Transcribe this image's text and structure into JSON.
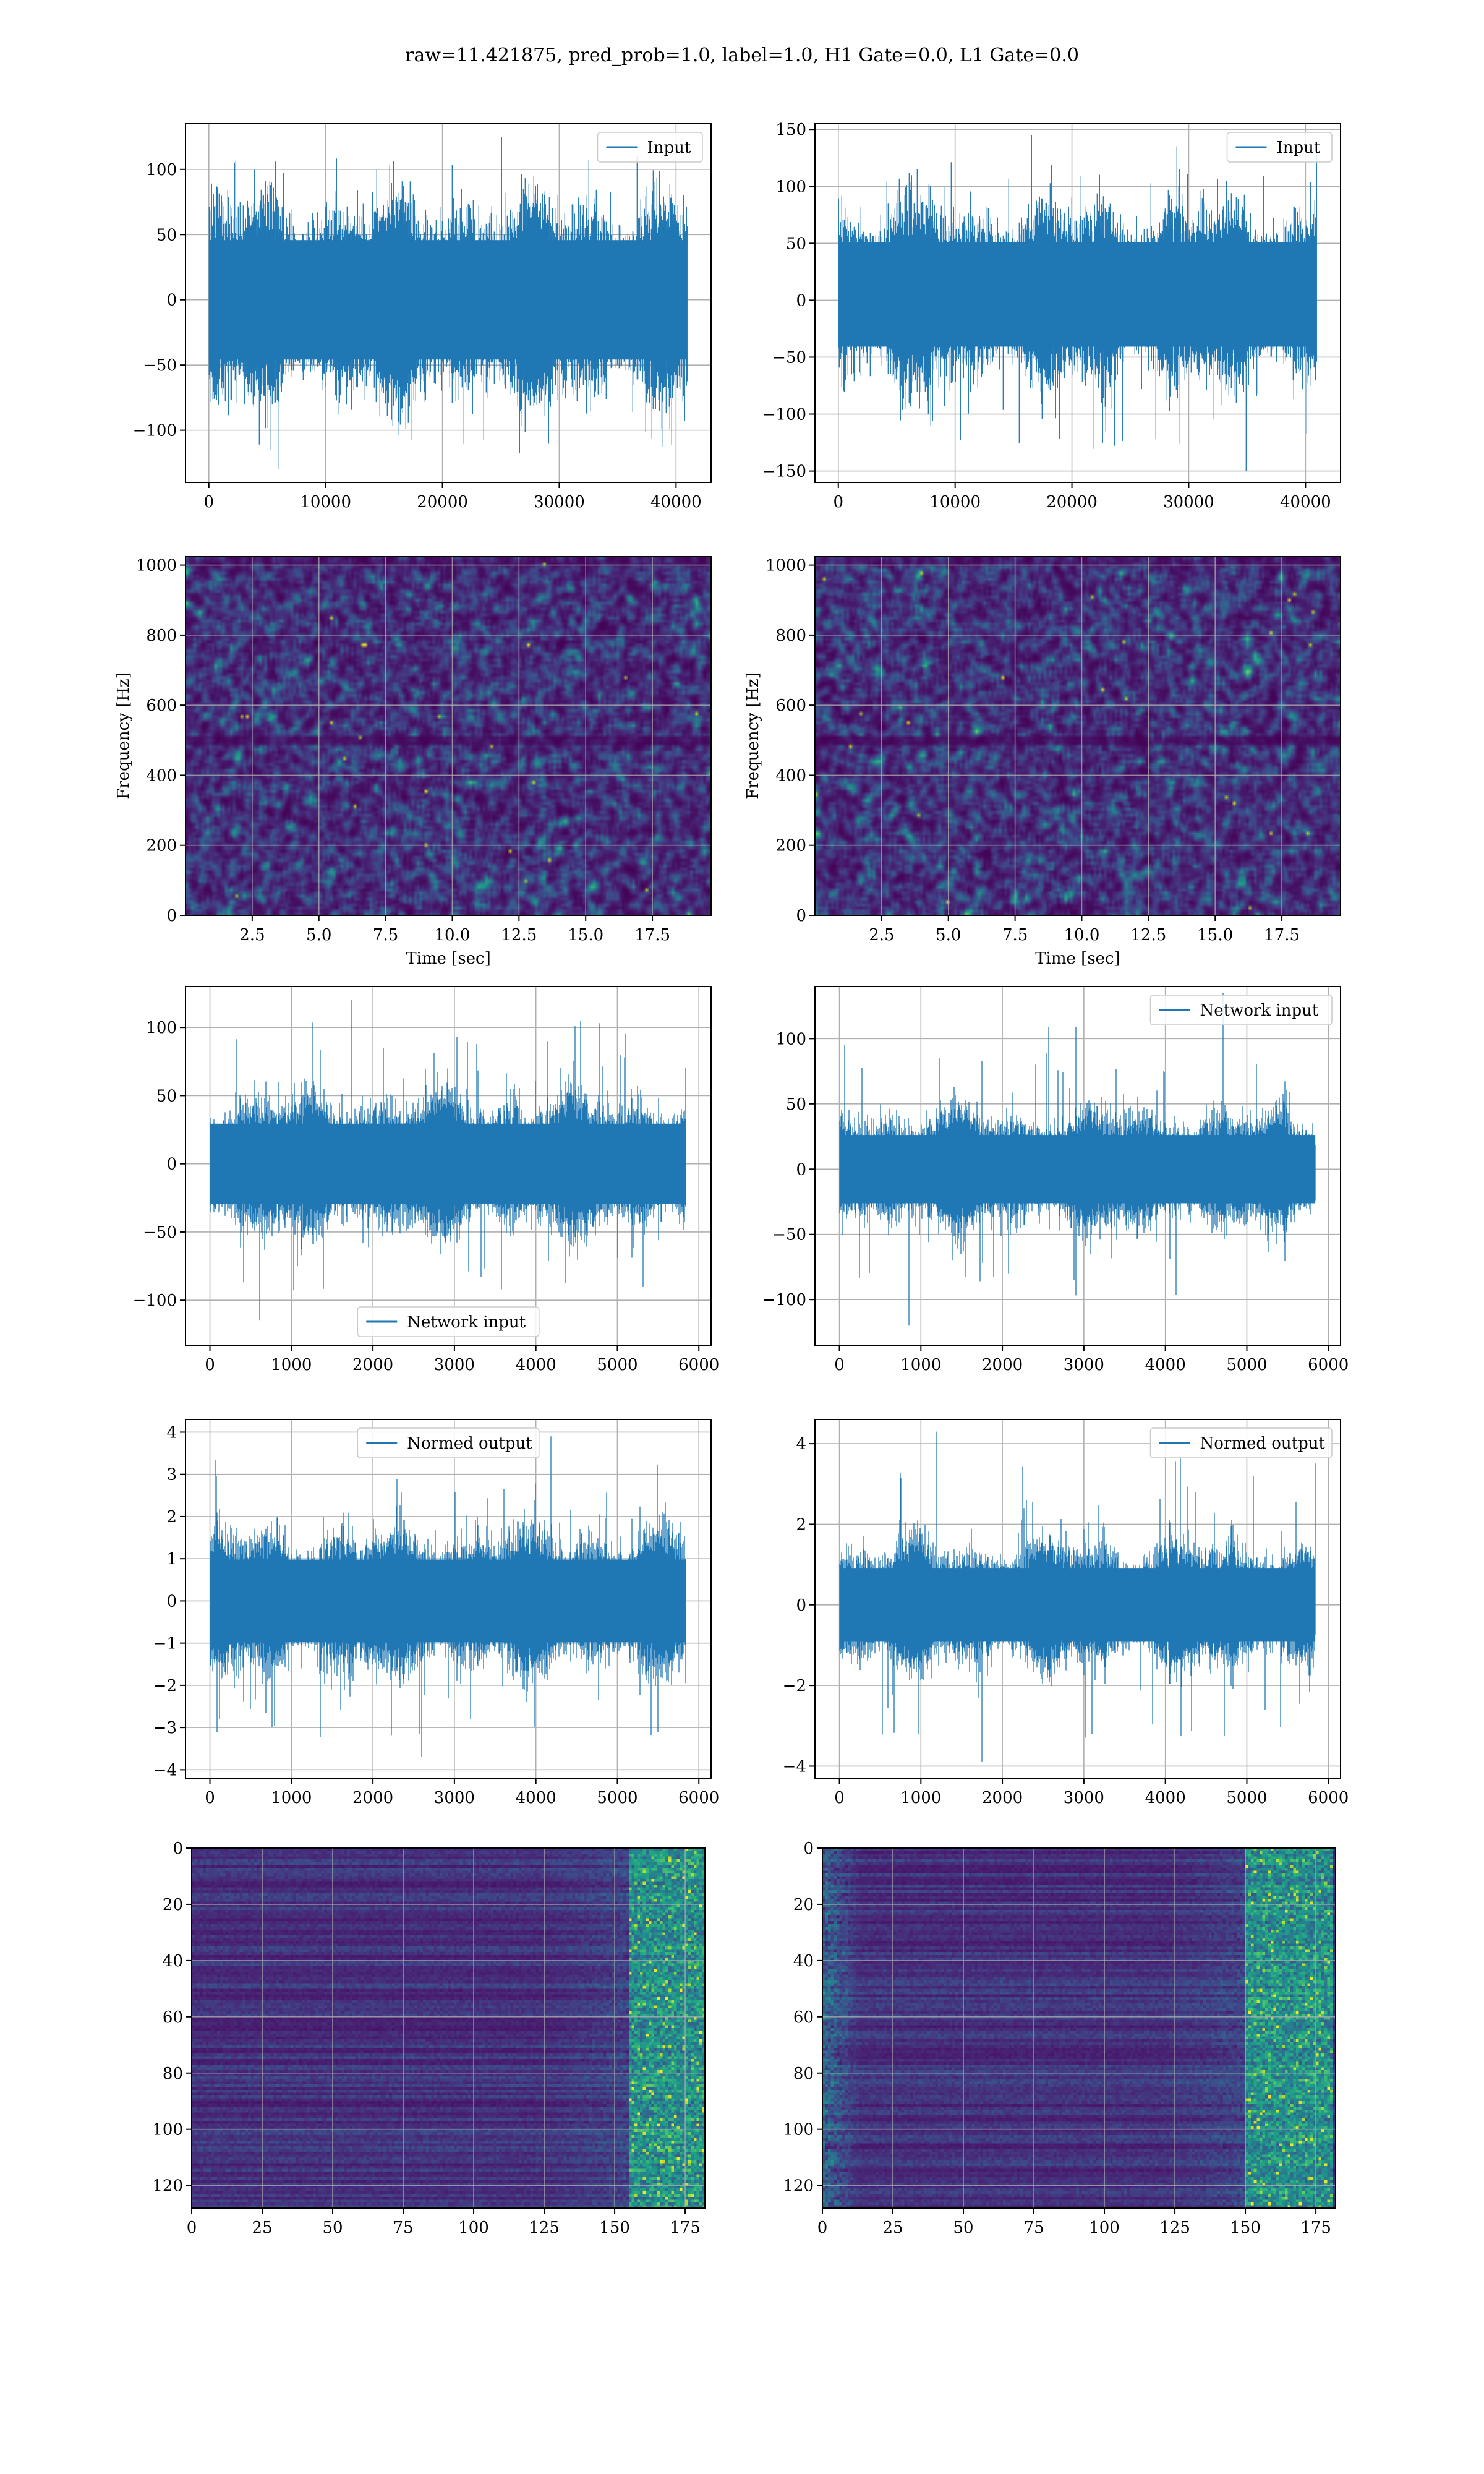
{
  "title": "raw=11.421875, pred_prob=1.0, label=1.0, H1 Gate=0.0, L1 Gate=0.0",
  "colors": {
    "line": "#1f77b4",
    "grid": "#b0b0b0",
    "viridis_low": "#440154",
    "viridis_mid": "#21918c",
    "viridis_high": "#fde725"
  },
  "chart_data": [
    {
      "id": "input-h1",
      "type": "line",
      "legend": [
        "Input"
      ],
      "legend_loc": "upper right",
      "xlim": [
        -2000,
        43000
      ],
      "ylim": [
        -140,
        135
      ],
      "xticks": [
        0,
        10000,
        20000,
        30000,
        40000
      ],
      "yticks": [
        -100,
        -50,
        0,
        50,
        100
      ],
      "xlabel": "",
      "ylabel": "",
      "grid": true,
      "n_samples": 40960,
      "core_range": [
        -70,
        70
      ],
      "peak_range": [
        -130,
        125
      ]
    },
    {
      "id": "input-l1",
      "type": "line",
      "legend": [
        "Input"
      ],
      "legend_loc": "upper right",
      "xlim": [
        -2000,
        43000
      ],
      "ylim": [
        -160,
        155
      ],
      "xticks": [
        0,
        10000,
        20000,
        30000,
        40000
      ],
      "yticks": [
        -150,
        -100,
        -50,
        0,
        50,
        100,
        150
      ],
      "xlabel": "",
      "ylabel": "",
      "grid": true,
      "n_samples": 40960,
      "core_range": [
        -65,
        75
      ],
      "peak_range": [
        -150,
        145
      ]
    },
    {
      "id": "spectrogram-h1",
      "type": "heatmap",
      "xlim": [
        0,
        19.7
      ],
      "ylim": [
        0,
        1024
      ],
      "xticks": [
        2.5,
        5.0,
        7.5,
        10.0,
        12.5,
        15.0,
        17.5
      ],
      "yticks": [
        0,
        200,
        400,
        600,
        800,
        1000
      ],
      "xlabel": "Time [sec]",
      "ylabel": "Frequency [Hz]",
      "grid": true,
      "colormap": "viridis"
    },
    {
      "id": "spectrogram-l1",
      "type": "heatmap",
      "xlim": [
        0,
        19.7
      ],
      "ylim": [
        0,
        1024
      ],
      "xticks": [
        2.5,
        5.0,
        7.5,
        10.0,
        12.5,
        15.0,
        17.5
      ],
      "yticks": [
        0,
        200,
        400,
        600,
        800,
        1000
      ],
      "xlabel": "Time [sec]",
      "ylabel": "Frequency [Hz]",
      "grid": true,
      "colormap": "viridis"
    },
    {
      "id": "network-input-h1",
      "type": "line",
      "legend": [
        "Network input"
      ],
      "legend_loc": "lower center",
      "xlim": [
        -300,
        6150
      ],
      "ylim": [
        -133,
        130
      ],
      "xticks": [
        0,
        1000,
        2000,
        3000,
        4000,
        5000,
        6000
      ],
      "yticks": [
        -100,
        -50,
        0,
        50,
        100
      ],
      "xlabel": "",
      "ylabel": "",
      "grid": true,
      "n_samples": 5840,
      "core_range": [
        -45,
        45
      ],
      "peak_range": [
        -115,
        120
      ]
    },
    {
      "id": "network-input-l1",
      "type": "line",
      "legend": [
        "Network input"
      ],
      "legend_loc": "upper right",
      "xlim": [
        -300,
        6150
      ],
      "ylim": [
        -135,
        140
      ],
      "xticks": [
        0,
        1000,
        2000,
        3000,
        4000,
        5000,
        6000
      ],
      "yticks": [
        -100,
        -50,
        0,
        50,
        100
      ],
      "xlabel": "",
      "ylabel": "",
      "grid": true,
      "n_samples": 5840,
      "core_range": [
        -40,
        40
      ],
      "peak_range": [
        -120,
        135
      ]
    },
    {
      "id": "normed-output-h1",
      "type": "line",
      "legend": [
        "Normed output"
      ],
      "legend_loc": "upper center",
      "xlim": [
        -300,
        6150
      ],
      "ylim": [
        -4.2,
        4.3
      ],
      "xticks": [
        0,
        1000,
        2000,
        3000,
        4000,
        5000,
        6000
      ],
      "yticks": [
        -4,
        -3,
        -2,
        -1,
        0,
        1,
        2,
        3,
        4
      ],
      "xlabel": "",
      "ylabel": "",
      "grid": true,
      "n_samples": 5840,
      "core_range": [
        -1.5,
        1.5
      ],
      "peak_range": [
        -3.7,
        3.9
      ]
    },
    {
      "id": "normed-output-l1",
      "type": "line",
      "legend": [
        "Normed output"
      ],
      "legend_loc": "upper right",
      "xlim": [
        -300,
        6150
      ],
      "ylim": [
        -4.3,
        4.6
      ],
      "xticks": [
        0,
        1000,
        2000,
        3000,
        4000,
        5000,
        6000
      ],
      "yticks": [
        -4,
        -2,
        0,
        2,
        4
      ],
      "xlabel": "",
      "ylabel": "",
      "grid": true,
      "n_samples": 5840,
      "core_range": [
        -1.4,
        1.4
      ],
      "peak_range": [
        -3.9,
        4.3
      ]
    },
    {
      "id": "feature-map-h1",
      "type": "heatmap",
      "xlim": [
        0,
        182
      ],
      "ylim": [
        128,
        0
      ],
      "xticks": [
        0,
        25,
        50,
        75,
        100,
        125,
        150,
        175
      ],
      "yticks": [
        0,
        20,
        40,
        60,
        80,
        100,
        120
      ],
      "xlabel": "",
      "ylabel": "",
      "grid": true,
      "colormap": "viridis",
      "bright_columns": [
        155,
        182
      ]
    },
    {
      "id": "feature-map-l1",
      "type": "heatmap",
      "xlim": [
        0,
        182
      ],
      "ylim": [
        128,
        0
      ],
      "xticks": [
        0,
        25,
        50,
        75,
        100,
        125,
        150,
        175
      ],
      "yticks": [
        0,
        20,
        40,
        60,
        80,
        100,
        120
      ],
      "xlabel": "",
      "ylabel": "",
      "grid": true,
      "colormap": "viridis",
      "bright_columns": [
        150,
        180
      ],
      "bright_left_columns": [
        0,
        12
      ]
    }
  ]
}
